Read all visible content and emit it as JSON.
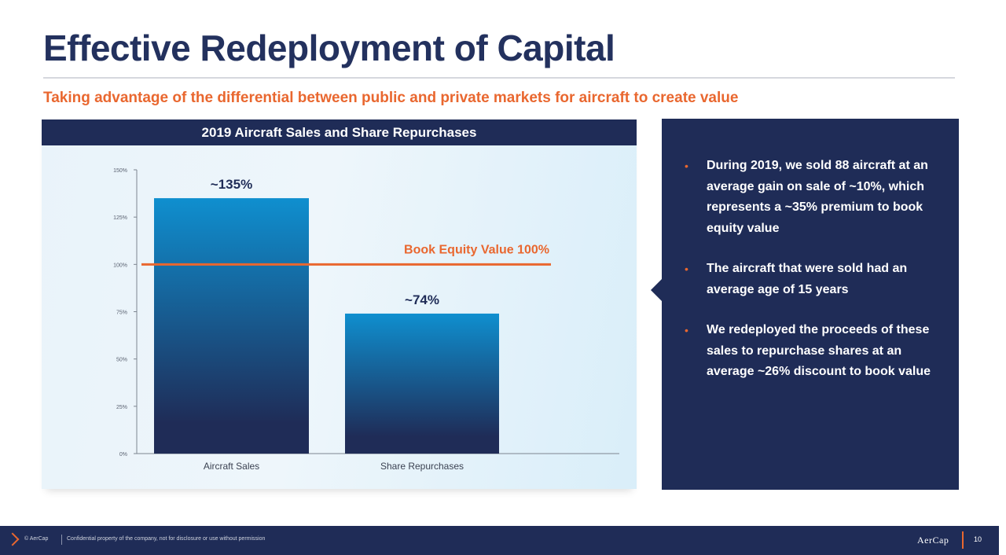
{
  "slide": {
    "title": "Effective Redeployment of Capital",
    "subtitle": "Taking advantage of the differential between public and private markets for aircraft to create value"
  },
  "chart_data": {
    "type": "bar",
    "title": "2019 Aircraft Sales and Share Repurchases",
    "categories": [
      "Aircraft Sales",
      "Share Repurchases"
    ],
    "values": [
      135,
      74
    ],
    "data_labels": [
      "~135%",
      "~74%"
    ],
    "yticks": [
      "0%",
      "25%",
      "50%",
      "75%",
      "100%",
      "125%",
      "150%"
    ],
    "ylim": [
      0,
      150
    ],
    "xlabel": "",
    "ylabel": "",
    "reference_line": {
      "value": 100,
      "label": "Book Equity Value 100%",
      "color": "#e9672f"
    },
    "bar_gradient": [
      "#0f8fcf",
      "#1f2c57"
    ],
    "grid": false
  },
  "info_panel": {
    "bullets": [
      "During 2019, we sold 88 aircraft at an average gain on sale of ~10%, which represents a ~35% premium to book equity value",
      "The aircraft that were sold had an average age of 15 years",
      "We redeployed the proceeds of these sales to repurchase shares at an average ~26% discount to book value"
    ]
  },
  "footer": {
    "copyright": "© AerCap",
    "confidential": "Confidential property of the company, not for disclosure or use without permission",
    "logo": "AerCap",
    "page": "10"
  },
  "colors": {
    "navy": "#1f2c57",
    "title": "#23315e",
    "accent_orange": "#e9672f"
  }
}
